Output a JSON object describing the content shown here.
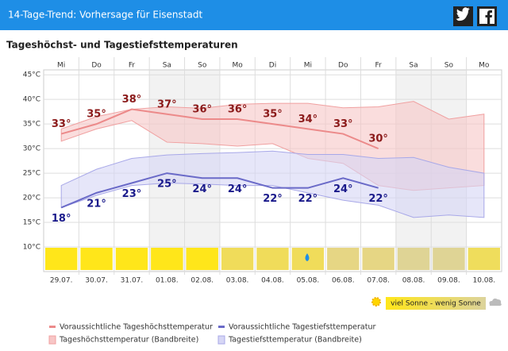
{
  "header": {
    "title": "14-Tage-Trend: Vorhersage für Eisenstadt"
  },
  "chart_data": {
    "type": "line",
    "title": "Tageshöchst- und Tagestiefsttemperaturen",
    "categories": [
      "Mi",
      "Do",
      "Fr",
      "Sa",
      "So",
      "Mo",
      "Di",
      "Mi",
      "Do",
      "Fr",
      "Sa",
      "So",
      "Mo"
    ],
    "dates": [
      "29.07.",
      "30.07.",
      "31.07.",
      "01.08.",
      "02.08.",
      "03.08.",
      "04.08.",
      "05.08.",
      "06.08.",
      "07.08.",
      "08.08.",
      "09.08.",
      "10.08."
    ],
    "ylim": [
      5,
      46
    ],
    "yticks": [
      {
        "value": 10,
        "label": "10°C"
      },
      {
        "value": 15,
        "label": "15°C"
      },
      {
        "value": 20,
        "label": "20°C"
      },
      {
        "value": 25,
        "label": "25°C"
      },
      {
        "value": 30,
        "label": "30°C"
      },
      {
        "value": 35,
        "label": "35°C"
      },
      {
        "value": 40,
        "label": "40°C"
      },
      {
        "value": 45,
        "label": "45°C"
      }
    ],
    "grid": true,
    "bands": [
      {
        "name": "Tageshöchsttemperatur (Bandbreite)",
        "color": "#f7c6c6",
        "stroke": "#f0a0a0",
        "upper": [
          34,
          36.5,
          38,
          38.5,
          38.2,
          39,
          39.2,
          39.2,
          38.3,
          38.5,
          39.6,
          36,
          37
        ],
        "lower": [
          31.5,
          34,
          35.7,
          31.3,
          31,
          30.5,
          31,
          28,
          27,
          22.5,
          21.5,
          22,
          22.5
        ]
      },
      {
        "name": "Tagestiefsttemperatur (Bandbreite)",
        "color": "#d6d6f5",
        "stroke": "#a8a8e8",
        "upper": [
          22.5,
          25.8,
          28,
          28.7,
          29,
          29.2,
          29.5,
          28.8,
          28.8,
          28,
          28.2,
          26.2,
          25
        ],
        "lower": [
          18,
          20.5,
          22.5,
          23,
          22.8,
          22.5,
          22.5,
          21,
          19.5,
          18.5,
          16,
          16.5,
          16
        ]
      }
    ],
    "series": [
      {
        "name": "Voraussichtliche Tageshöchsttemperatur",
        "color": "#ec8a8a",
        "label_color": "#8b1a1a",
        "values": [
          33,
          35,
          38,
          37,
          36,
          36,
          35,
          34,
          33,
          30,
          null,
          null,
          null
        ],
        "value_labels": [
          "33°",
          "35°",
          "38°",
          "37°",
          "36°",
          "36°",
          "35°",
          "34°",
          "33°",
          "30°",
          null,
          null,
          null
        ]
      },
      {
        "name": "Voraussichtliche Tagestiefsttemperatur",
        "color": "#6a6ac8",
        "label_color": "#1a1a8b",
        "values": [
          18,
          21,
          23,
          25,
          24,
          24,
          22,
          22,
          24,
          22,
          null,
          null,
          null
        ],
        "value_labels": [
          "18°",
          "21°",
          "23°",
          "25°",
          "24°",
          "24°",
          "22°",
          "22°",
          "24°",
          "22°",
          null,
          null,
          null
        ]
      }
    ],
    "sun_colors": [
      "#ffe61a",
      "#ffe61a",
      "#ffe61a",
      "#ffe61a",
      "#ffe61a",
      "#f0dc5a",
      "#f0dc5a",
      "#f0dc5a",
      "#e6d684",
      "#e6d684",
      "#dfd495",
      "#dfd495",
      "#efdd5c"
    ],
    "sun_legend": "viel Sonne - wenig Sonne"
  }
}
